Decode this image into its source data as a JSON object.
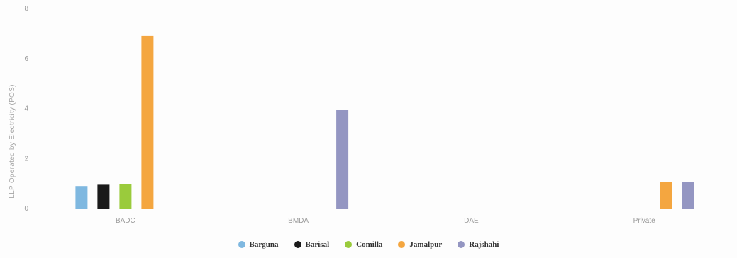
{
  "chart_data": {
    "type": "bar",
    "title": "",
    "xlabel": "",
    "ylabel": "LLP Operated by Electricity (POS)",
    "ylim": [
      0,
      8
    ],
    "yticks": [
      0,
      2,
      4,
      6,
      8
    ],
    "grid": false,
    "legend_position": "bottom-center",
    "categories": [
      "BADC",
      "BMDA",
      "DAE",
      "Private"
    ],
    "series": [
      {
        "name": "Barguna",
        "color": "#7fb8e0",
        "values": [
          0.9,
          0,
          0,
          0
        ]
      },
      {
        "name": "Barisal",
        "color": "#1a1a1a",
        "values": [
          0.95,
          0,
          0,
          0
        ]
      },
      {
        "name": "Comilla",
        "color": "#9acb3c",
        "values": [
          0.98,
          0,
          0,
          0
        ]
      },
      {
        "name": "Jamalpur",
        "color": "#f4a640",
        "values": [
          6.9,
          0,
          0,
          1.05
        ]
      },
      {
        "name": "Rajshahi",
        "color": "#9496c2",
        "values": [
          0,
          3.95,
          0,
          1.05
        ]
      }
    ]
  }
}
